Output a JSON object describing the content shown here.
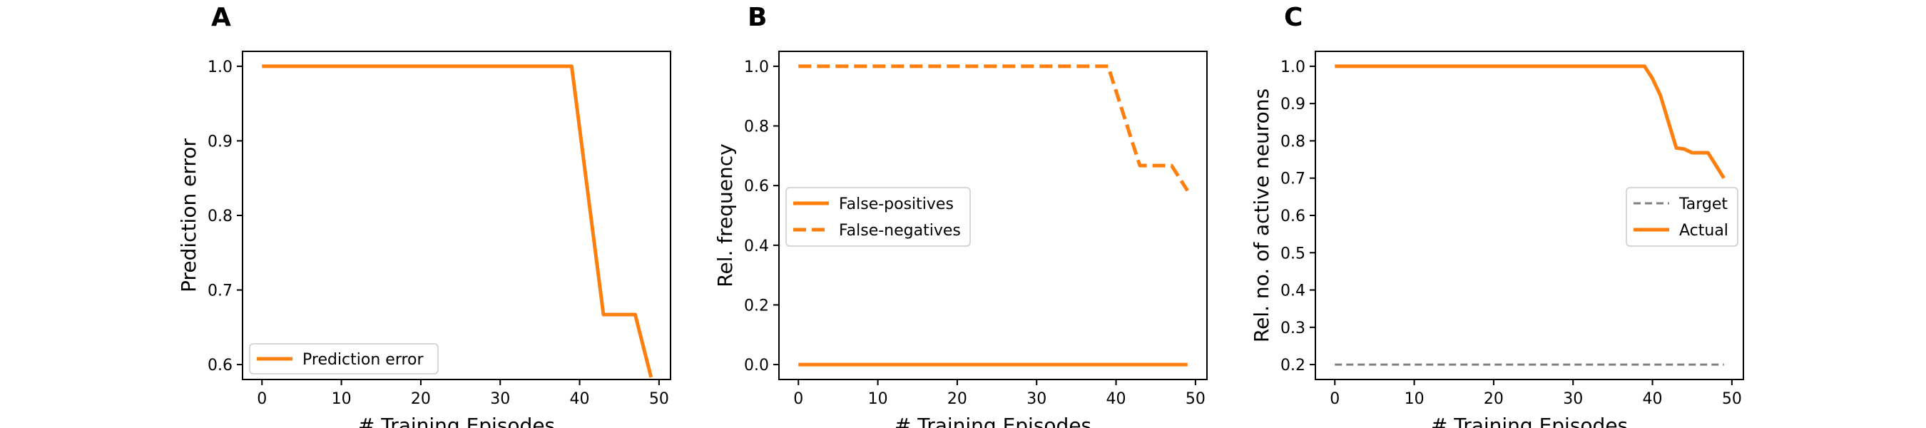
{
  "colors": {
    "series": "#ff7f0e",
    "target": "#808080"
  },
  "chart_data": [
    {
      "type": "line",
      "panel": "A",
      "title": "",
      "xlabel": "# Training Episodes",
      "ylabel": "Prediction error",
      "xlim": [
        -2.45,
        51.45
      ],
      "ylim": [
        0.58,
        1.02
      ],
      "xticks": [
        0,
        10,
        20,
        30,
        40,
        50
      ],
      "yticks": [
        0.6,
        0.7,
        0.8,
        0.9,
        1.0
      ],
      "ytick_labels": [
        "0.6",
        "0.7",
        "0.8",
        "0.9",
        "1.0"
      ],
      "grid": false,
      "legend": "lower-left",
      "series": [
        {
          "name": "Prediction error",
          "style": "solid",
          "color": "#ff7f0e",
          "x": [
            0,
            39,
            43,
            47,
            49
          ],
          "y": [
            1.0,
            1.0,
            0.667,
            0.667,
            0.583
          ]
        }
      ]
    },
    {
      "type": "line",
      "panel": "B",
      "title": "",
      "xlabel": "# Training Episodes",
      "ylabel": "Rel. frequency",
      "xlim": [
        -2.45,
        51.45
      ],
      "ylim": [
        -0.05,
        1.05
      ],
      "xticks": [
        0,
        10,
        20,
        30,
        40,
        50
      ],
      "yticks": [
        0.0,
        0.2,
        0.4,
        0.6,
        0.8,
        1.0
      ],
      "ytick_labels": [
        "0.0",
        "0.2",
        "0.4",
        "0.6",
        "0.8",
        "1.0"
      ],
      "grid": false,
      "legend": "center-left",
      "series": [
        {
          "name": "False-positives",
          "style": "solid",
          "color": "#ff7f0e",
          "x": [
            0,
            49
          ],
          "y": [
            0.0,
            0.0
          ]
        },
        {
          "name": "False-negatives",
          "style": "dashed",
          "color": "#ff7f0e",
          "x": [
            0,
            39,
            43,
            47,
            49
          ],
          "y": [
            1.0,
            1.0,
            0.667,
            0.667,
            0.583
          ]
        }
      ]
    },
    {
      "type": "line",
      "panel": "C",
      "title": "",
      "xlabel": "# Training Episodes",
      "ylabel": "Rel. no. of active neurons",
      "xlim": [
        -2.45,
        51.45
      ],
      "ylim": [
        0.16,
        1.04
      ],
      "xticks": [
        0,
        10,
        20,
        30,
        40,
        50
      ],
      "yticks": [
        0.2,
        0.3,
        0.4,
        0.5,
        0.6,
        0.7,
        0.8,
        0.9,
        1.0
      ],
      "ytick_labels": [
        "0.2",
        "0.3",
        "0.4",
        "0.5",
        "0.6",
        "0.7",
        "0.8",
        "0.9",
        "1.0"
      ],
      "grid": false,
      "legend": "center-right",
      "series": [
        {
          "name": "Target",
          "style": "dashed-thin",
          "color": "#808080",
          "x": [
            0,
            49
          ],
          "y": [
            0.2,
            0.2
          ]
        },
        {
          "name": "Actual",
          "style": "solid",
          "color": "#ff7f0e",
          "x": [
            0,
            39,
            40,
            41,
            43,
            44,
            45,
            47,
            49
          ],
          "y": [
            1.0,
            1.0,
            0.967,
            0.922,
            0.781,
            0.778,
            0.768,
            0.768,
            0.7
          ]
        }
      ]
    }
  ]
}
